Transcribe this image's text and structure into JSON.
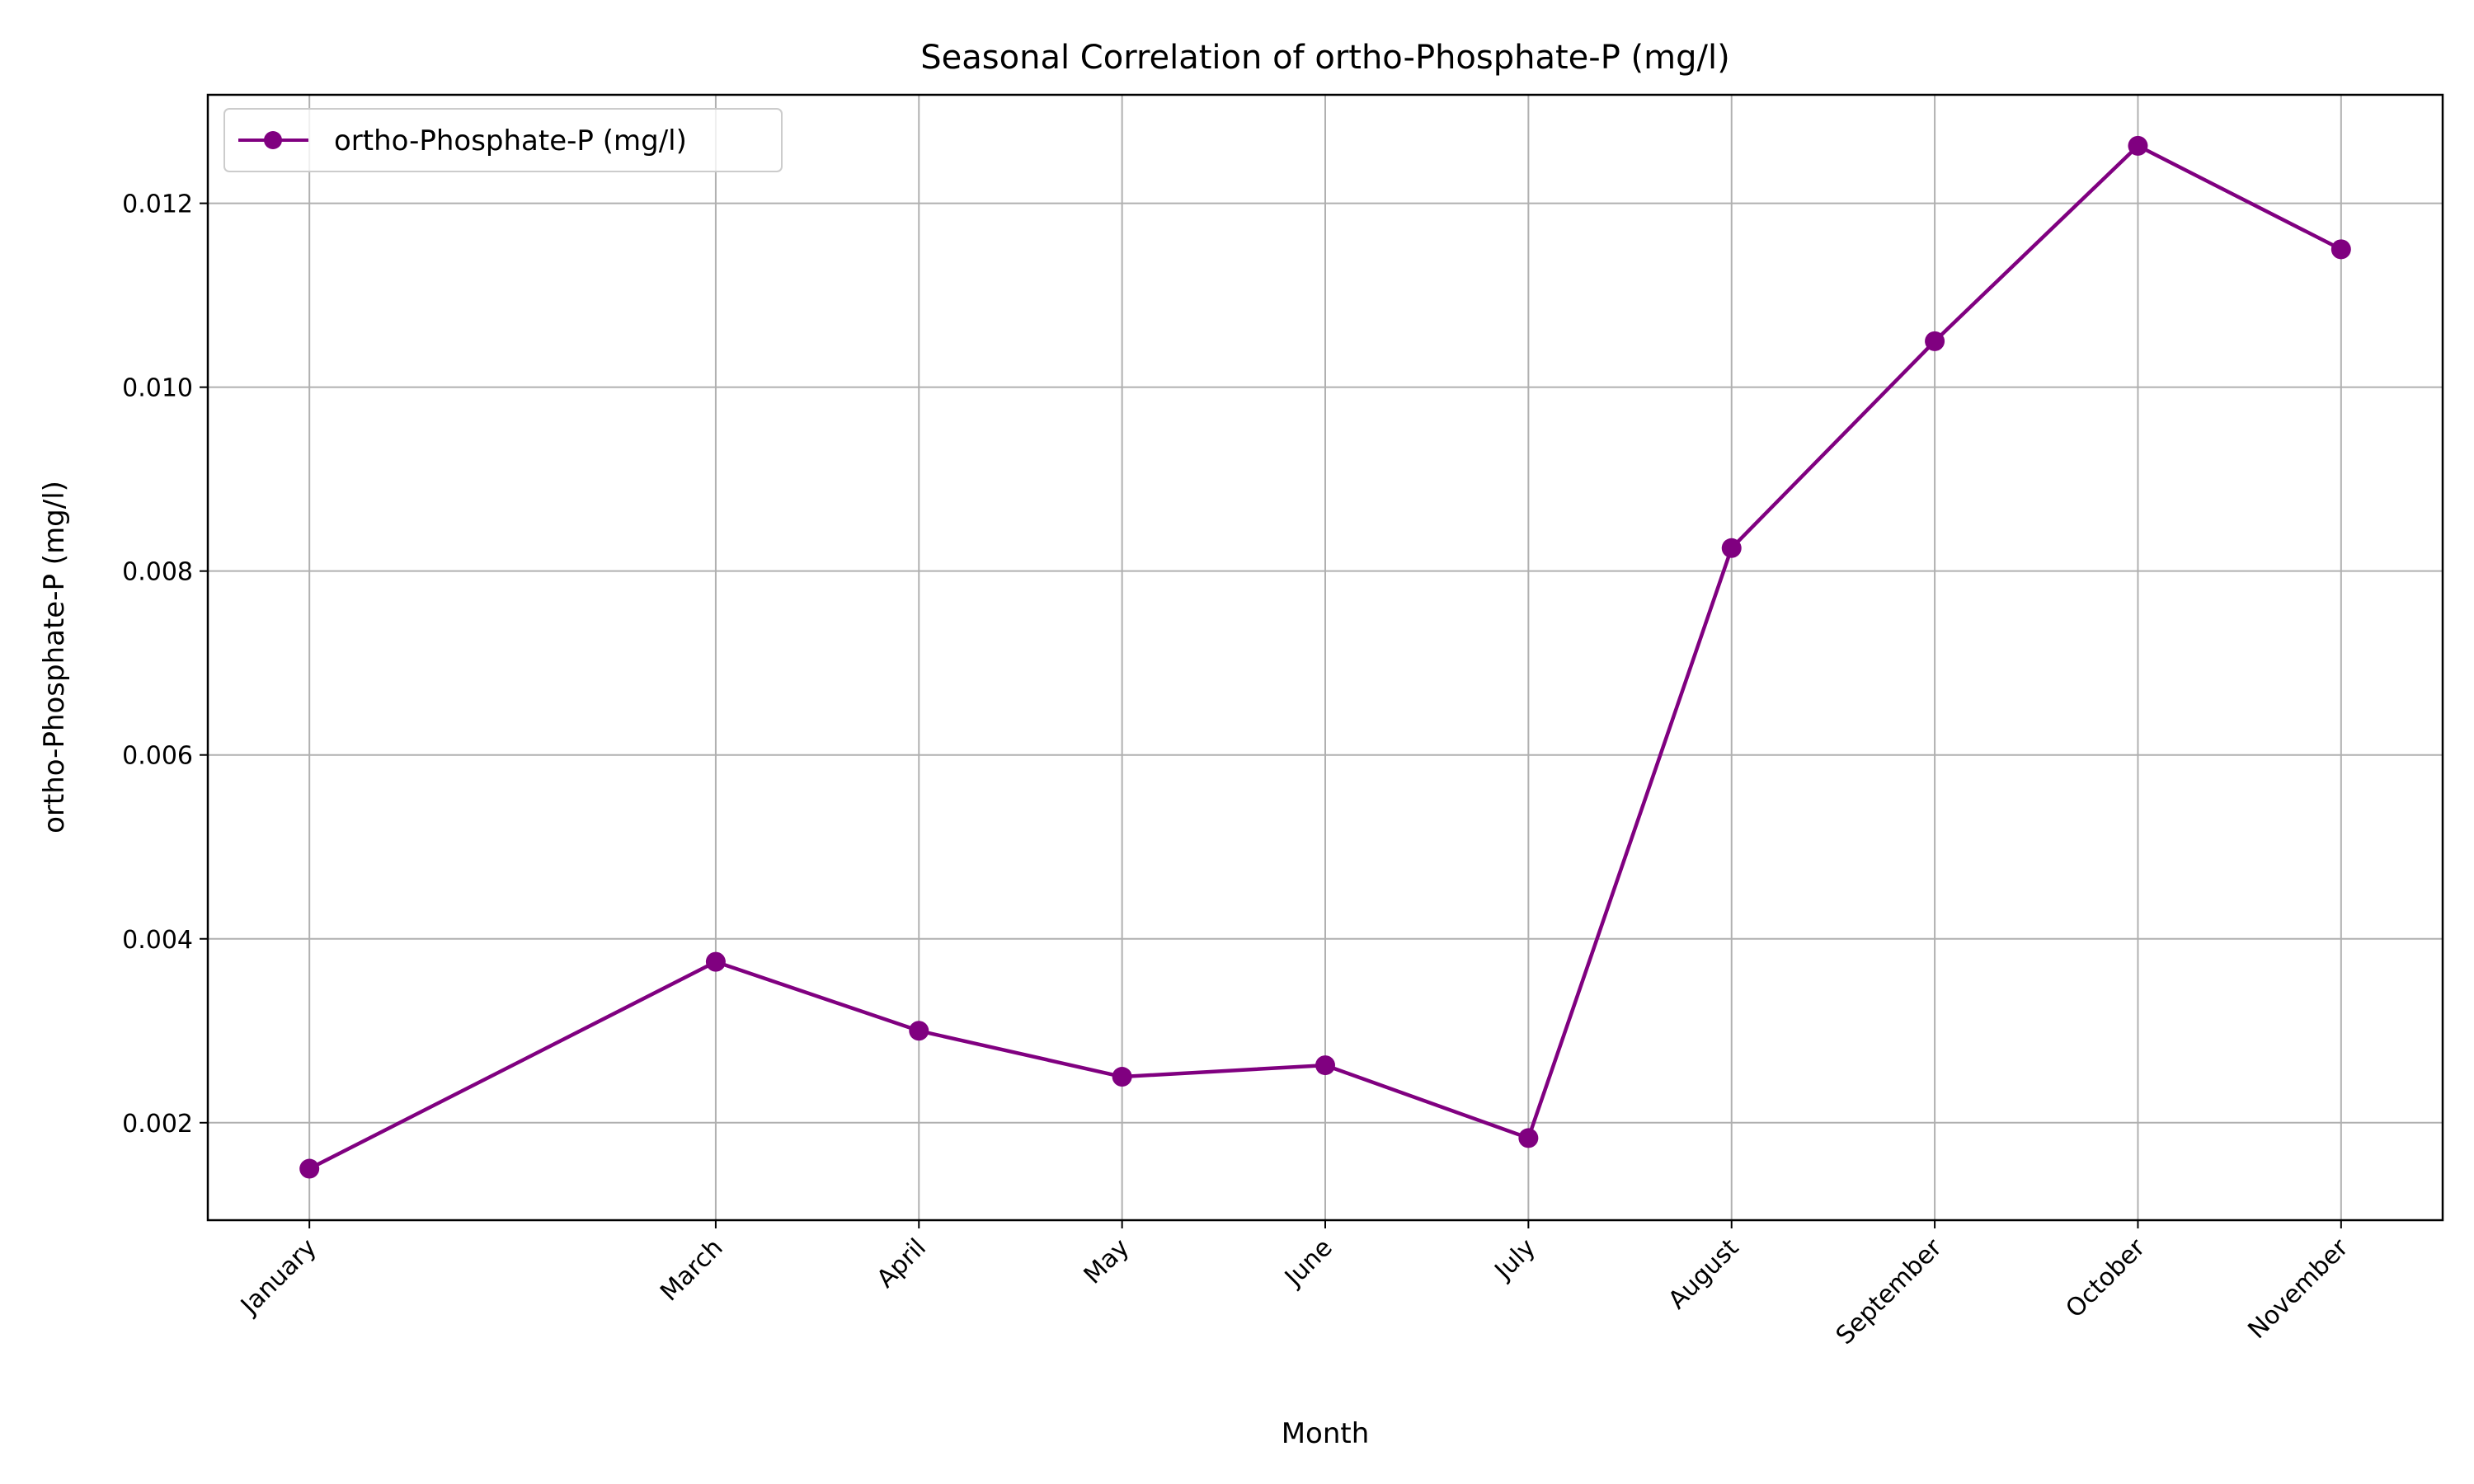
{
  "chart_data": {
    "type": "line",
    "title": "Seasonal Correlation of ortho-Phosphate-P (mg/l)",
    "xlabel": "Month",
    "ylabel": "ortho-Phosphate-P (mg/l)",
    "x_month_index": [
      1,
      3,
      4,
      5,
      6,
      7,
      8,
      9,
      10,
      11
    ],
    "categories": [
      "January",
      "March",
      "April",
      "May",
      "June",
      "July",
      "August",
      "September",
      "October",
      "November"
    ],
    "series": [
      {
        "name": "ortho-Phosphate-P (mg/l)",
        "color": "#800080",
        "marker": "circle",
        "values": [
          0.0015,
          0.00375,
          0.003,
          0.0025,
          0.002625,
          0.001833,
          0.00825,
          0.0105,
          0.012625,
          0.0115
        ]
      }
    ],
    "xlim": [
      0.5,
      11.5
    ],
    "ylim": [
      0.00094,
      0.01318
    ],
    "yticks": [
      0.002,
      0.004,
      0.006,
      0.008,
      0.01,
      0.012
    ],
    "ytick_labels": [
      "0.002",
      "0.004",
      "0.006",
      "0.008",
      "0.010",
      "0.012"
    ],
    "grid": true,
    "legend_position": "upper left"
  }
}
